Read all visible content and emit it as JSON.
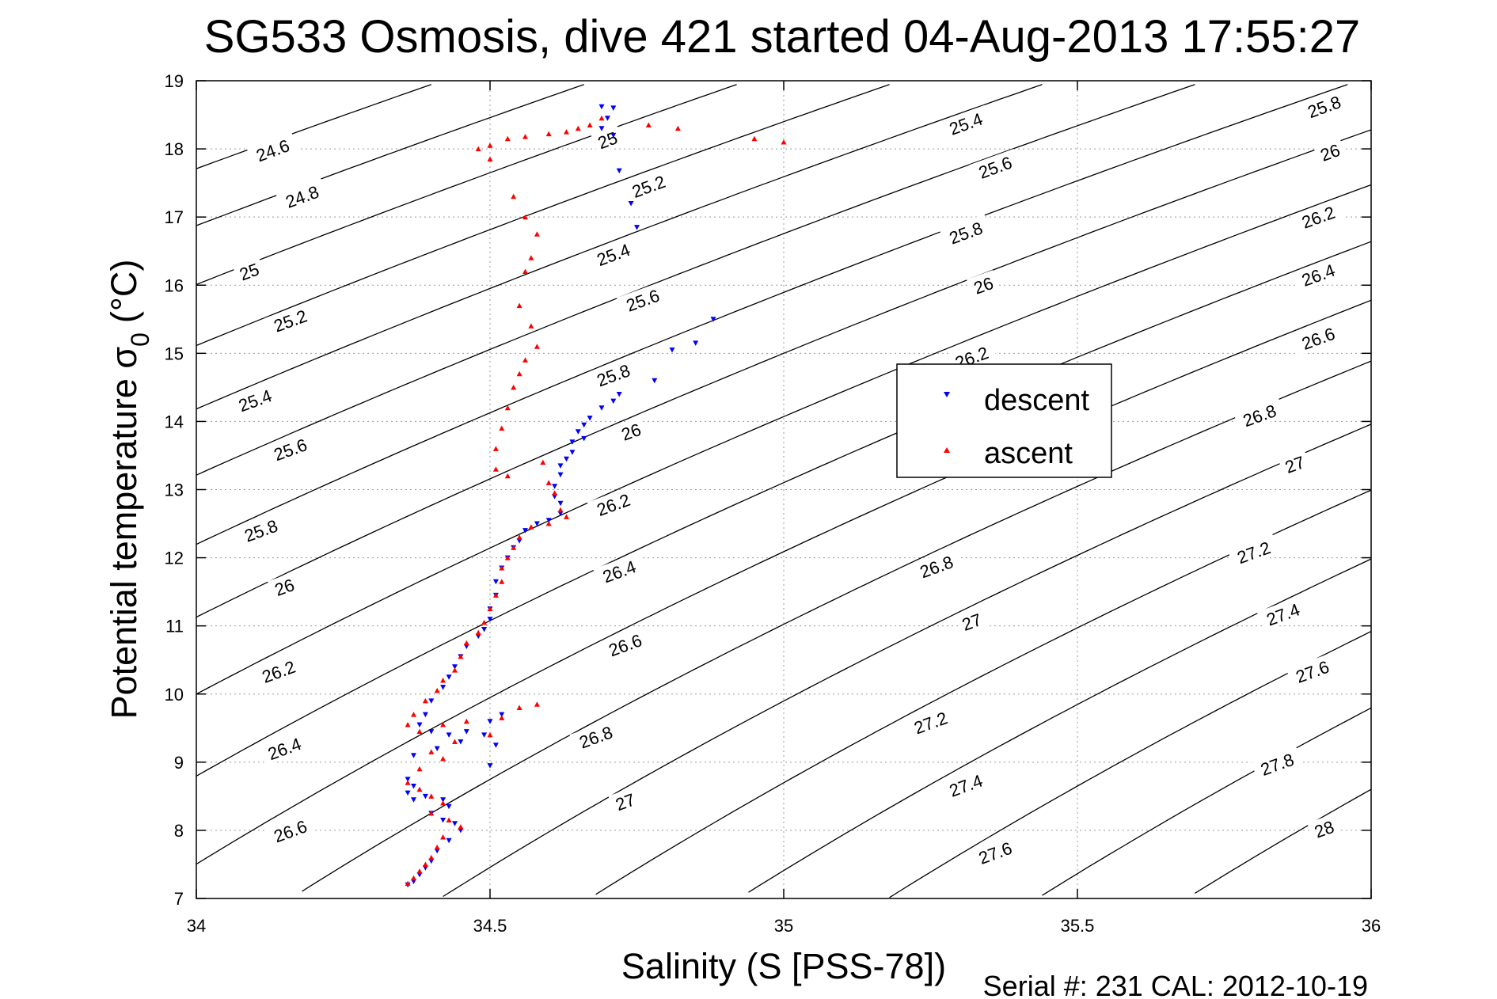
{
  "chart_data": {
    "type": "scatter",
    "title": "SG533 Osmosis, dive 421 started 04-Aug-2013 17:55:27",
    "xlabel": "Salinity (S [PSS-78])",
    "ylabel": "Potential temperature σ0 (°C)",
    "ylabel_main": "Potential temperature σ",
    "ylabel_sub": "0",
    "ylabel_unit": "(°C)",
    "xlim": [
      34,
      36
    ],
    "ylim": [
      7,
      19
    ],
    "xticks": [
      34,
      34.5,
      35,
      35.5,
      36
    ],
    "xtick_labels": [
      "34",
      "34.5",
      "35",
      "35.5",
      "36"
    ],
    "yticks": [
      7,
      8,
      9,
      10,
      11,
      12,
      13,
      14,
      15,
      16,
      17,
      18,
      19
    ],
    "ytick_labels": [
      "7",
      "8",
      "9",
      "10",
      "11",
      "12",
      "13",
      "14",
      "15",
      "16",
      "17",
      "18",
      "19"
    ],
    "grid": true,
    "legend_position": "center-right",
    "footer": "Serial #: 231  CAL: 2012-10-19",
    "contours": {
      "levels": [
        24.6,
        24.8,
        25,
        25.2,
        25.4,
        25.6,
        25.8,
        26,
        26.2,
        26.4,
        26.6,
        26.8,
        27,
        27.2,
        27.4,
        27.6,
        27.8,
        28
      ],
      "labels": [
        {
          "text": "24.6",
          "s": 34.13,
          "t": 17.98
        },
        {
          "text": "24.8",
          "s": 34.18,
          "t": 17.3
        },
        {
          "text": "25",
          "s": 34.09,
          "t": 16.2
        },
        {
          "text": "25.2",
          "s": 34.16,
          "t": 15.48
        },
        {
          "text": "25.4",
          "s": 34.1,
          "t": 14.31
        },
        {
          "text": "25.6",
          "s": 34.16,
          "t": 13.59
        },
        {
          "text": "25.8",
          "s": 34.11,
          "t": 12.4
        },
        {
          "text": "26",
          "s": 34.15,
          "t": 11.57
        },
        {
          "text": "26.2",
          "s": 34.14,
          "t": 10.33
        },
        {
          "text": "26.4",
          "s": 34.15,
          "t": 9.2
        },
        {
          "text": "26.6",
          "s": 34.16,
          "t": 7.99
        },
        {
          "text": "25",
          "s": 34.7,
          "t": 18.13
        },
        {
          "text": "25.2",
          "s": 34.77,
          "t": 17.45
        },
        {
          "text": "25.4",
          "s": 34.71,
          "t": 16.45
        },
        {
          "text": "25.6",
          "s": 34.76,
          "t": 15.78
        },
        {
          "text": "25.8",
          "s": 34.71,
          "t": 14.68
        },
        {
          "text": "26",
          "s": 34.74,
          "t": 13.85
        },
        {
          "text": "26.2",
          "s": 34.71,
          "t": 12.78
        },
        {
          "text": "26.4",
          "s": 34.72,
          "t": 11.8
        },
        {
          "text": "26.6",
          "s": 34.73,
          "t": 10.72
        },
        {
          "text": "26.8",
          "s": 34.68,
          "t": 9.37
        },
        {
          "text": "27",
          "s": 34.73,
          "t": 8.42
        },
        {
          "text": "25.4",
          "s": 35.31,
          "t": 18.37
        },
        {
          "text": "25.6",
          "s": 35.36,
          "t": 17.73
        },
        {
          "text": "25.8",
          "s": 35.31,
          "t": 16.77
        },
        {
          "text": "26",
          "s": 35.34,
          "t": 16.0
        },
        {
          "text": "26.2",
          "s": 35.32,
          "t": 14.94
        },
        {
          "text": "26.8",
          "s": 35.26,
          "t": 11.87
        },
        {
          "text": "27",
          "s": 35.32,
          "t": 11.06
        },
        {
          "text": "27.2",
          "s": 35.25,
          "t": 9.58
        },
        {
          "text": "27.4",
          "s": 35.31,
          "t": 8.66
        },
        {
          "text": "27.6",
          "s": 35.36,
          "t": 7.67
        },
        {
          "text": "25.8",
          "s": 35.92,
          "t": 18.62
        },
        {
          "text": "26",
          "s": 35.93,
          "t": 17.95
        },
        {
          "text": "26.2",
          "s": 35.91,
          "t": 17.0
        },
        {
          "text": "26.4",
          "s": 35.91,
          "t": 16.15
        },
        {
          "text": "26.6",
          "s": 35.91,
          "t": 15.22
        },
        {
          "text": "26.8",
          "s": 35.81,
          "t": 14.09
        },
        {
          "text": "27",
          "s": 35.87,
          "t": 13.37
        },
        {
          "text": "27.2",
          "s": 35.8,
          "t": 12.08
        },
        {
          "text": "27.4",
          "s": 35.85,
          "t": 11.17
        },
        {
          "text": "27.6",
          "s": 35.9,
          "t": 10.33
        },
        {
          "text": "27.8",
          "s": 35.84,
          "t": 8.97
        },
        {
          "text": "28",
          "s": 35.92,
          "t": 8.02
        }
      ]
    },
    "series": [
      {
        "name": "descent",
        "color": "#0000ff",
        "marker": "triangle-down",
        "points": [
          [
            34.69,
            18.62
          ],
          [
            34.71,
            18.6
          ],
          [
            34.7,
            18.45
          ],
          [
            34.69,
            18.3
          ],
          [
            34.71,
            18.2
          ],
          [
            34.72,
            17.68
          ],
          [
            34.74,
            17.2
          ],
          [
            34.75,
            16.85
          ],
          [
            34.88,
            15.5
          ],
          [
            34.85,
            15.15
          ],
          [
            34.81,
            15.05
          ],
          [
            34.78,
            14.6
          ],
          [
            34.72,
            14.4
          ],
          [
            34.71,
            14.3
          ],
          [
            34.69,
            14.2
          ],
          [
            34.67,
            14.05
          ],
          [
            34.66,
            13.95
          ],
          [
            34.65,
            13.85
          ],
          [
            34.66,
            13.75
          ],
          [
            34.64,
            13.7
          ],
          [
            34.64,
            13.55
          ],
          [
            34.63,
            13.45
          ],
          [
            34.62,
            13.35
          ],
          [
            34.62,
            13.22
          ],
          [
            34.61,
            13.05
          ],
          [
            34.61,
            12.9
          ],
          [
            34.62,
            12.8
          ],
          [
            34.62,
            12.65
          ],
          [
            34.6,
            12.55
          ],
          [
            34.58,
            12.5
          ],
          [
            34.56,
            12.4
          ],
          [
            34.55,
            12.25
          ],
          [
            34.54,
            12.15
          ],
          [
            34.53,
            12.0
          ],
          [
            34.52,
            11.85
          ],
          [
            34.51,
            11.65
          ],
          [
            34.51,
            11.45
          ],
          [
            34.5,
            11.25
          ],
          [
            34.5,
            11.1
          ],
          [
            34.49,
            10.95
          ],
          [
            34.48,
            10.85
          ],
          [
            34.46,
            10.7
          ],
          [
            34.45,
            10.55
          ],
          [
            34.44,
            10.4
          ],
          [
            34.43,
            10.25
          ],
          [
            34.42,
            10.1
          ],
          [
            34.4,
            9.9
          ],
          [
            34.39,
            9.7
          ],
          [
            34.38,
            9.55
          ],
          [
            34.4,
            9.45
          ],
          [
            34.43,
            9.4
          ],
          [
            34.46,
            9.45
          ],
          [
            34.5,
            9.6
          ],
          [
            34.52,
            9.7
          ],
          [
            34.49,
            9.4
          ],
          [
            34.45,
            9.3
          ],
          [
            34.41,
            9.2
          ],
          [
            34.37,
            9.1
          ],
          [
            34.51,
            9.25
          ],
          [
            34.5,
            8.95
          ],
          [
            34.36,
            8.75
          ],
          [
            34.37,
            8.65
          ],
          [
            34.36,
            8.55
          ],
          [
            34.37,
            8.45
          ],
          [
            34.39,
            8.5
          ],
          [
            34.42,
            8.45
          ],
          [
            34.43,
            8.35
          ],
          [
            34.4,
            8.25
          ],
          [
            34.42,
            8.15
          ],
          [
            34.44,
            8.1
          ],
          [
            34.45,
            8.0
          ],
          [
            34.43,
            7.85
          ],
          [
            34.41,
            7.7
          ],
          [
            34.4,
            7.55
          ],
          [
            34.39,
            7.45
          ],
          [
            34.38,
            7.35
          ],
          [
            34.37,
            7.25
          ],
          [
            34.36,
            7.2
          ]
        ]
      },
      {
        "name": "ascent",
        "color": "#ff0000",
        "marker": "triangle-up",
        "points": [
          [
            34.69,
            18.45
          ],
          [
            34.67,
            18.35
          ],
          [
            34.65,
            18.3
          ],
          [
            34.63,
            18.25
          ],
          [
            34.6,
            18.22
          ],
          [
            34.56,
            18.18
          ],
          [
            34.53,
            18.15
          ],
          [
            34.5,
            18.05
          ],
          [
            34.5,
            17.85
          ],
          [
            34.54,
            17.3
          ],
          [
            34.56,
            17.0
          ],
          [
            34.58,
            16.75
          ],
          [
            34.57,
            16.4
          ],
          [
            34.56,
            16.2
          ],
          [
            34.55,
            15.7
          ],
          [
            34.57,
            15.4
          ],
          [
            34.58,
            15.1
          ],
          [
            34.56,
            14.9
          ],
          [
            34.55,
            14.7
          ],
          [
            34.54,
            14.5
          ],
          [
            34.53,
            14.2
          ],
          [
            34.52,
            13.9
          ],
          [
            34.51,
            13.6
          ],
          [
            34.51,
            13.3
          ],
          [
            34.53,
            13.2
          ],
          [
            34.59,
            13.4
          ],
          [
            34.6,
            13.1
          ],
          [
            34.61,
            12.95
          ],
          [
            34.62,
            12.7
          ],
          [
            34.63,
            12.6
          ],
          [
            34.6,
            12.5
          ],
          [
            34.57,
            12.45
          ],
          [
            34.55,
            12.3
          ],
          [
            34.54,
            12.15
          ],
          [
            34.53,
            12.0
          ],
          [
            34.52,
            11.85
          ],
          [
            34.52,
            11.65
          ],
          [
            34.51,
            11.45
          ],
          [
            34.5,
            11.25
          ],
          [
            34.49,
            11.05
          ],
          [
            34.48,
            10.9
          ],
          [
            34.46,
            10.75
          ],
          [
            34.45,
            10.55
          ],
          [
            34.44,
            10.35
          ],
          [
            34.42,
            10.2
          ],
          [
            34.41,
            10.05
          ],
          [
            34.39,
            9.9
          ],
          [
            34.37,
            9.7
          ],
          [
            34.36,
            9.55
          ],
          [
            34.38,
            9.45
          ],
          [
            34.42,
            9.55
          ],
          [
            34.46,
            9.6
          ],
          [
            34.52,
            9.65
          ],
          [
            34.55,
            9.8
          ],
          [
            34.58,
            9.85
          ],
          [
            34.5,
            9.4
          ],
          [
            34.44,
            9.3
          ],
          [
            34.4,
            9.15
          ],
          [
            34.42,
            9.05
          ],
          [
            34.38,
            8.9
          ],
          [
            34.36,
            8.7
          ],
          [
            34.38,
            8.6
          ],
          [
            34.4,
            8.5
          ],
          [
            34.42,
            8.4
          ],
          [
            34.4,
            8.25
          ],
          [
            34.43,
            8.15
          ],
          [
            34.45,
            8.05
          ],
          [
            34.42,
            7.9
          ],
          [
            34.41,
            7.75
          ],
          [
            34.4,
            7.6
          ],
          [
            34.39,
            7.5
          ],
          [
            34.38,
            7.4
          ],
          [
            34.37,
            7.3
          ],
          [
            34.36,
            7.22
          ],
          [
            34.77,
            18.35
          ],
          [
            34.82,
            18.3
          ],
          [
            34.95,
            18.15
          ],
          [
            35.0,
            18.1
          ],
          [
            34.48,
            18.0
          ]
        ]
      }
    ]
  }
}
